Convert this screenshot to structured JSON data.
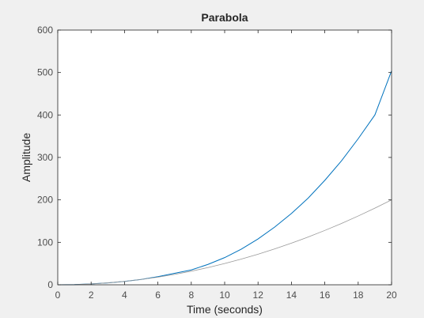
{
  "chart_data": {
    "type": "line",
    "title": "Parabola",
    "xlabel": "Time (seconds)",
    "ylabel": "Amplitude",
    "xlim": [
      0,
      20
    ],
    "ylim": [
      0,
      600
    ],
    "xticks": [
      "0",
      "2",
      "4",
      "6",
      "8",
      "10",
      "12",
      "14",
      "16",
      "18",
      "20"
    ],
    "yticks": [
      "0",
      "100",
      "200",
      "300",
      "400",
      "500",
      "600"
    ],
    "grid": false,
    "legend": "none",
    "series": [
      {
        "color": "#0072bd",
        "x": [
          0,
          1,
          2,
          3,
          4,
          5,
          6,
          7,
          8,
          9,
          10,
          11,
          12,
          13,
          14,
          15,
          16,
          17,
          18,
          19,
          20
        ],
        "y": [
          0,
          0.5,
          2,
          4.5,
          8,
          12.5,
          19,
          27,
          35,
          48,
          64,
          84,
          108,
          136,
          168,
          204,
          246,
          292,
          344,
          400,
          504
        ]
      },
      {
        "color": "#999999",
        "x": [
          0,
          1,
          2,
          3,
          4,
          5,
          6,
          7,
          8,
          9,
          10,
          11,
          12,
          13,
          14,
          15,
          16,
          17,
          18,
          19,
          20
        ],
        "y": [
          0,
          0.5,
          2,
          4.5,
          8,
          12.5,
          18,
          24.5,
          32,
          40.5,
          50,
          60.5,
          72,
          84.5,
          98,
          112.5,
          128,
          144.5,
          162,
          180.5,
          200
        ]
      }
    ]
  }
}
